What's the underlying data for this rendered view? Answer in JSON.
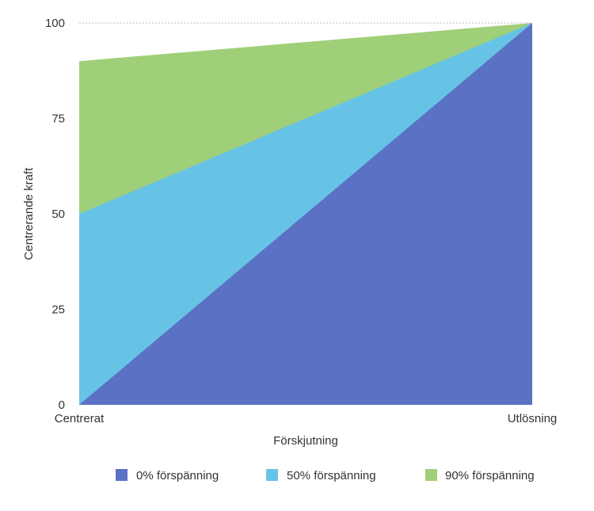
{
  "chart_data": {
    "type": "area",
    "stacked": false,
    "title": "",
    "xlabel": "Förskjutning",
    "ylabel": "Centrerande kraft",
    "x_categories": [
      "Centrerat",
      "Utlösning"
    ],
    "ylim": [
      0,
      100
    ],
    "y_ticks": [
      "0",
      "25",
      "50",
      "75",
      "100"
    ],
    "legend_position": "bottom",
    "series": [
      {
        "name": "90% förspänning",
        "values": [
          90,
          100
        ],
        "color": "#9fcf78"
      },
      {
        "name": "50% förspänning",
        "values": [
          50,
          100
        ],
        "color": "#67c3e6"
      },
      {
        "name": "0% förspänning",
        "values": [
          0,
          100
        ],
        "color": "#5b71c4"
      }
    ],
    "legend": [
      {
        "label": "0% förspänning",
        "color": "#5b71c4"
      },
      {
        "label": "50% förspänning",
        "color": "#67c3e6"
      },
      {
        "label": "90% förspänning",
        "color": "#9fcf78"
      }
    ]
  }
}
